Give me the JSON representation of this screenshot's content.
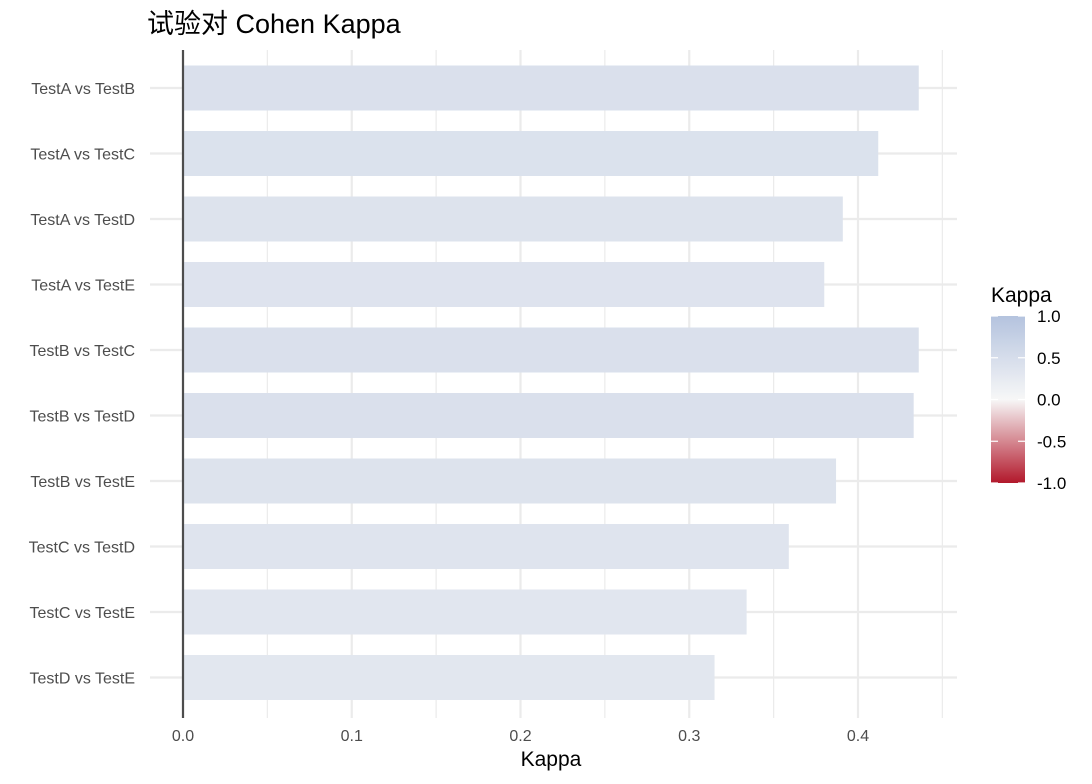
{
  "chart_data": {
    "type": "bar",
    "orientation": "horizontal",
    "title": "试验对 Cohen Kappa",
    "xlabel": "Kappa",
    "ylabel": "",
    "categories": [
      "TestA vs TestB",
      "TestA vs TestC",
      "TestA vs TestD",
      "TestA vs TestE",
      "TestB vs TestC",
      "TestB vs TestD",
      "TestB vs TestE",
      "TestC vs TestD",
      "TestC vs TestE",
      "TestD vs TestE"
    ],
    "values": [
      0.436,
      0.412,
      0.391,
      0.38,
      0.436,
      0.433,
      0.387,
      0.359,
      0.334,
      0.315
    ],
    "xlim": [
      0.0,
      0.45
    ],
    "xticks": [
      0.0,
      0.1,
      0.2,
      0.3,
      0.4
    ],
    "xtick_labels": [
      "0.0",
      "0.1",
      "0.2",
      "0.3",
      "0.4"
    ],
    "grid": true,
    "legend": {
      "title": "Kappa",
      "type": "colorbar",
      "position": "right",
      "limits": [
        -1.0,
        1.0
      ],
      "breaks": [
        1.0,
        0.5,
        0.0,
        -0.5,
        -1.0
      ],
      "labels": [
        "1.0",
        "0.5",
        "0.0",
        "-0.5",
        "-1.0"
      ],
      "low_color": "#b2182b",
      "mid_color": "#f7f7f7",
      "high_color": "#b4c3de"
    },
    "colors": {
      "grid": "#ebebeb",
      "axis_line": "#4d4d4d"
    }
  }
}
